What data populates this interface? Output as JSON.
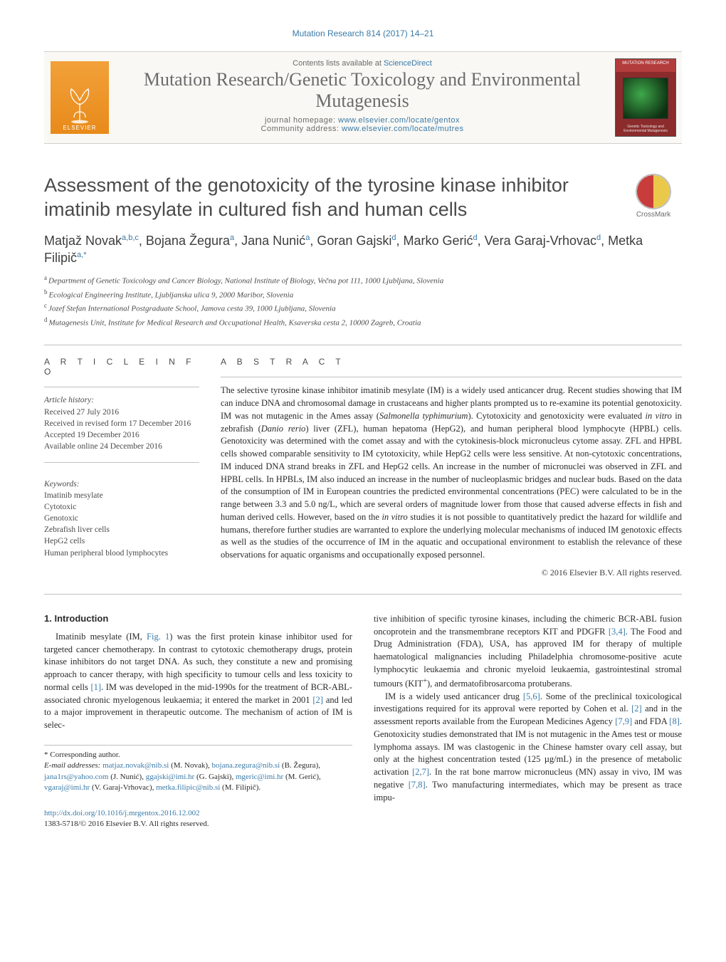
{
  "journal_ref": "Mutation Research 814 (2017) 14–21",
  "masthead": {
    "contents_prefix": "Contents lists available at ",
    "contents_link": "ScienceDirect",
    "journal_name": "Mutation Research/Genetic Toxicology and Environmental Mutagenesis",
    "homepage_label": "journal homepage: ",
    "homepage_url": "www.elsevier.com/locate/gentox",
    "community_label": "Community address: ",
    "community_url": "www.elsevier.com/locate/mutres",
    "publisher_logo_text": "ELSEVIER",
    "cover_band": "MUTATION RESEARCH",
    "cover_foot": "Genetic Toxicology and Environmental Mutagenesis"
  },
  "crossmark_label": "CrossMark",
  "title": "Assessment of the genotoxicity of the tyrosine kinase inhibitor imatinib mesylate in cultured fish and human cells",
  "authors_html": "Matjaž Novak<span class='sup'>a,b,c</span>, Bojana Žegura<span class='sup'>a</span>, Jana Nunić<span class='sup'>a</span>, Goran Gajski<span class='sup'>d</span>, Marko Gerić<span class='sup'>d</span>, Vera Garaj-Vrhovac<span class='sup'>d</span>, Metka Filipič<span class='sup'>a,*</span>",
  "affiliations": [
    {
      "key": "a",
      "text": "Department of Genetic Toxicology and Cancer Biology, National Institute of Biology, Večna pot 111, 1000 Ljubljana, Slovenia"
    },
    {
      "key": "b",
      "text": "Ecological Engineering Institute, Ljubljanska ulica 9, 2000 Maribor, Slovenia"
    },
    {
      "key": "c",
      "text": "Jozef Stefan International Postgraduate School, Jamova cesta 39, 1000 Ljubljana, Slovenia"
    },
    {
      "key": "d",
      "text": "Mutagenesis Unit, Institute for Medical Research and Occupational Health, Ksaverska cesta 2, 10000 Zagreb, Croatia"
    }
  ],
  "article_info_head": "A R T I C L E   I N F O",
  "abstract_head": "A B S T R A C T",
  "history": {
    "head": "Article history:",
    "lines": [
      "Received 27 July 2016",
      "Received in revised form 17 December 2016",
      "Accepted 19 December 2016",
      "Available online 24 December 2016"
    ]
  },
  "keywords": {
    "head": "Keywords:",
    "items": [
      "Imatinib mesylate",
      "Cytotoxic",
      "Genotoxic",
      "Zebrafish liver cells",
      "HepG2 cells",
      "Human peripheral blood lymphocytes"
    ]
  },
  "abstract_html": "The selective tyrosine kinase inhibitor imatinib mesylate (IM) is a widely used anticancer drug. Recent studies showing that IM can induce DNA and chromosomal damage in crustaceans and higher plants prompted us to re-examine its potential genotoxicity. IM was not mutagenic in the Ames assay (<span class='ital'>Salmonella typhimurium</span>). Cytotoxicity and genotoxicity were evaluated <span class='ital'>in vitro</span> in zebrafish (<span class='ital'>Danio rerio</span>) liver (ZFL), human hepatoma (HepG2), and human peripheral blood lymphocyte (HPBL) cells. Genotoxicity was determined with the comet assay and with the cytokinesis-block micronucleus cytome assay. ZFL and HPBL cells showed comparable sensitivity to IM cytotoxicity, while HepG2 cells were less sensitive. At non-cytotoxic concentrations, IM induced DNA strand breaks in ZFL and HepG2 cells. An increase in the number of micronuclei was observed in ZFL and HPBL cells. In HPBLs, IM also induced an increase in the number of nucleoplasmic bridges and nuclear buds. Based on the data of the consumption of IM in European countries the predicted environmental concentrations (PEC) were calculated to be in the range between 3.3 and 5.0 ng/L, which are several orders of magnitude lower from those that caused adverse effects in fish and human derived cells. However, based on the <span class='ital'>in vitro</span> studies it is not possible to quantitatively predict the hazard for wildlife and humans, therefore further studies are warranted to explore the underlying molecular mechanisms of induced IM genotoxic effects as well as the studies of the occurrence of IM in the aquatic and occupational environment to establish the relevance of these observations for aquatic organisms and occupationally exposed personnel.",
  "copyright": "© 2016 Elsevier B.V. All rights reserved.",
  "intro_head": "1.  Introduction",
  "intro_col1_html": "Imatinib mesylate (IM, <a href='#' class='reflink'>Fig. 1</a>) was the first protein kinase inhibitor used for targeted cancer chemotherapy. In contrast to cytotoxic chemotherapy drugs, protein kinase inhibitors do not target DNA. As such, they constitute a new and promising approach to cancer therapy, with high specificity to tumour cells and less toxicity to normal cells <a href='#' class='reflink'>[1]</a>. IM was developed in the mid-1990s for the treatment of BCR-ABL-associated chronic myelogenous leukaemia; it entered the market in 2001 <a href='#' class='reflink'>[2]</a> and led to a major improvement in therapeutic outcome. The mechanism of action of IM is selec-",
  "intro_col2_html": "tive inhibition of specific tyrosine kinases, including the chimeric BCR-ABL fusion oncoprotein and the transmembrane receptors KIT and PDGFR <a href='#' class='reflink'>[3,4]</a>. The Food and Drug Administration (FDA), USA, has approved IM for therapy of multiple haematological malignancies including Philadelphia chromosome-positive acute lymphocytic leukaemia and chronic myeloid leukaemia, gastrointestinal stromal tumours (KIT<sup>+</sup>), and dermatofibrosarcoma protuberans.",
  "intro_col2b_html": "IM is a widely used anticancer drug <a href='#' class='reflink'>[5,6]</a>. Some of the preclinical toxicological investigations required for its approval were reported by Cohen et al. <a href='#' class='reflink'>[2]</a> and in the assessment reports available from the European Medicines Agency <a href='#' class='reflink'>[7,9]</a> and FDA <a href='#' class='reflink'>[8]</a>. Genotoxicity studies demonstrated that IM is not mutagenic in the Ames test or mouse lymphoma assays. IM was clastogenic in the Chinese hamster ovary cell assay, but only at the highest concentration tested (125 µg/mL) in the presence of metabolic activation <a href='#' class='reflink'>[2,7]</a>. In the rat bone marrow micronucleus (MN) assay <span class='ital'>in vivo</span>, IM was negative <a href='#' class='reflink'>[7,8]</a>. Two manufacturing intermediates, which may be present as trace impu-",
  "corresponding": {
    "star_label": "* Corresponding author.",
    "email_label": "E-mail addresses:",
    "entries": [
      {
        "email": "matjaz.novak@nib.si",
        "name": "(M. Novak),"
      },
      {
        "email": "bojana.zegura@nib.si",
        "name": "(B. Žegura),"
      },
      {
        "email": "jana1rs@yahoo.com",
        "name": "(J. Nunić),"
      },
      {
        "email": "ggajski@imi.hr",
        "name": "(G. Gajski),"
      },
      {
        "email": "mgeric@imi.hr",
        "name": "(M. Gerić),"
      },
      {
        "email": "vgaraj@imi.hr",
        "name": "(V. Garaj-Vrhovac),"
      },
      {
        "email": "metka.filipic@nib.si",
        "name": "(M. Filipič)."
      }
    ]
  },
  "footer": {
    "doi": "http://dx.doi.org/10.1016/j.mrgentox.2016.12.002",
    "issn_line": "1383-5718/© 2016 Elsevier B.V. All rights reserved."
  },
  "colors": {
    "link": "#3a7aa8",
    "text": "#2a2a2a",
    "muted": "#6b6b6b",
    "rule": "#bfbfbf",
    "logo_bg": "#e88a1a",
    "cover_bg": "#8c2b2b"
  }
}
